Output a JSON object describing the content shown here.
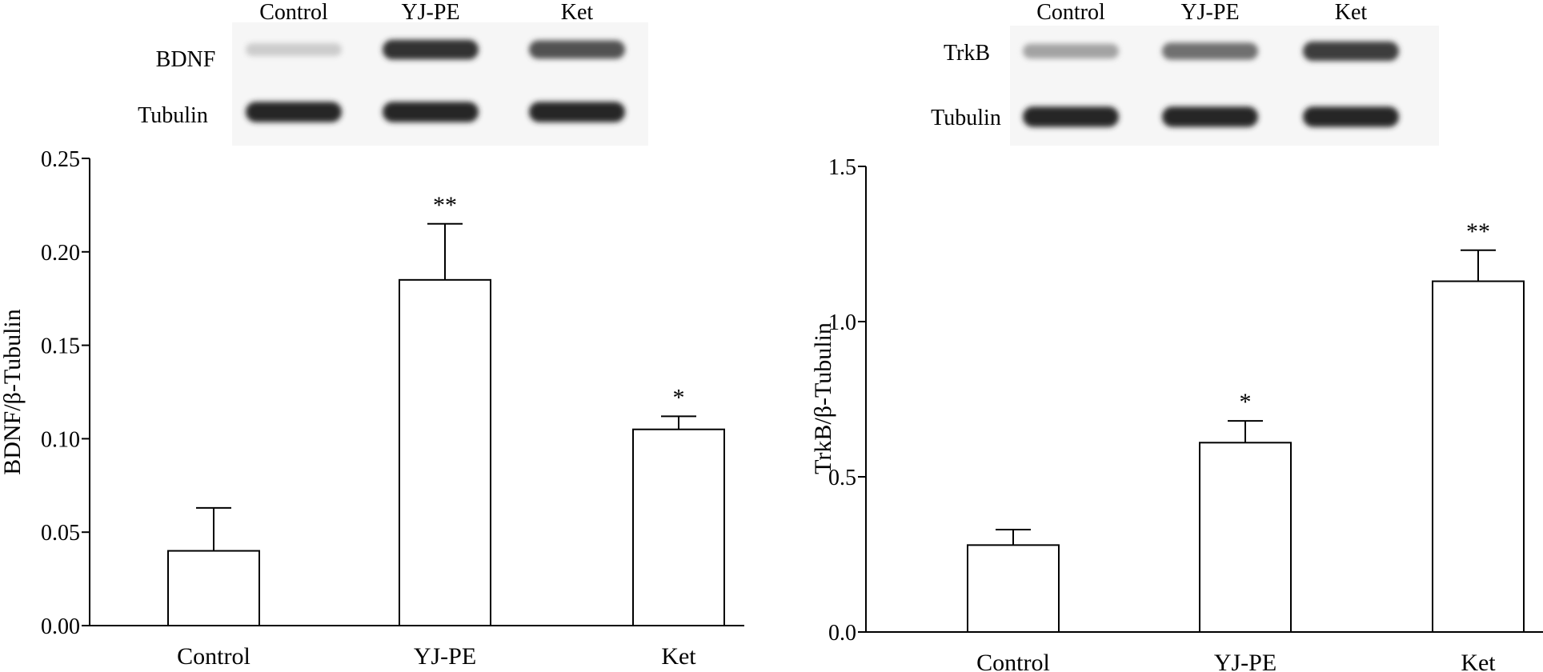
{
  "chart_data": [
    {
      "type": "bar",
      "blot": {
        "lane_labels": [
          "Control",
          "YJ-PE",
          "Ket"
        ],
        "row_labels": [
          "BDNF",
          "Tubulin"
        ],
        "band_intensity": [
          [
            0.15,
            0.9,
            0.75
          ],
          [
            0.95,
            0.95,
            0.95
          ]
        ]
      },
      "categories": [
        "Control",
        "YJ-PE",
        "Ket"
      ],
      "values": [
        0.04,
        0.185,
        0.105
      ],
      "errors": [
        0.023,
        0.03,
        0.007
      ],
      "significance": [
        "",
        "**",
        "*"
      ],
      "ylabel": "BDNF/β-Tubulin",
      "xlabel": "",
      "ylim": [
        0,
        0.25
      ],
      "yticks": [
        "0.00",
        "0.05",
        "0.10",
        "0.15",
        "0.20",
        "0.25"
      ],
      "grid": false
    },
    {
      "type": "bar",
      "blot": {
        "lane_labels": [
          "Control",
          "YJ-PE",
          "Ket"
        ],
        "row_labels": [
          "TrkB",
          "Tubulin"
        ],
        "band_intensity": [
          [
            0.35,
            0.6,
            0.85
          ],
          [
            0.95,
            0.95,
            0.95
          ]
        ]
      },
      "categories": [
        "Control",
        "YJ-PE",
        "Ket"
      ],
      "values": [
        0.28,
        0.61,
        1.13
      ],
      "errors": [
        0.05,
        0.07,
        0.1
      ],
      "significance": [
        "",
        "*",
        "**"
      ],
      "ylabel": "TrkB/β-Tubulin",
      "xlabel": "",
      "ylim": [
        0,
        1.5
      ],
      "yticks": [
        "0.0",
        "0.5",
        "1.0",
        "1.5"
      ],
      "grid": false
    }
  ]
}
